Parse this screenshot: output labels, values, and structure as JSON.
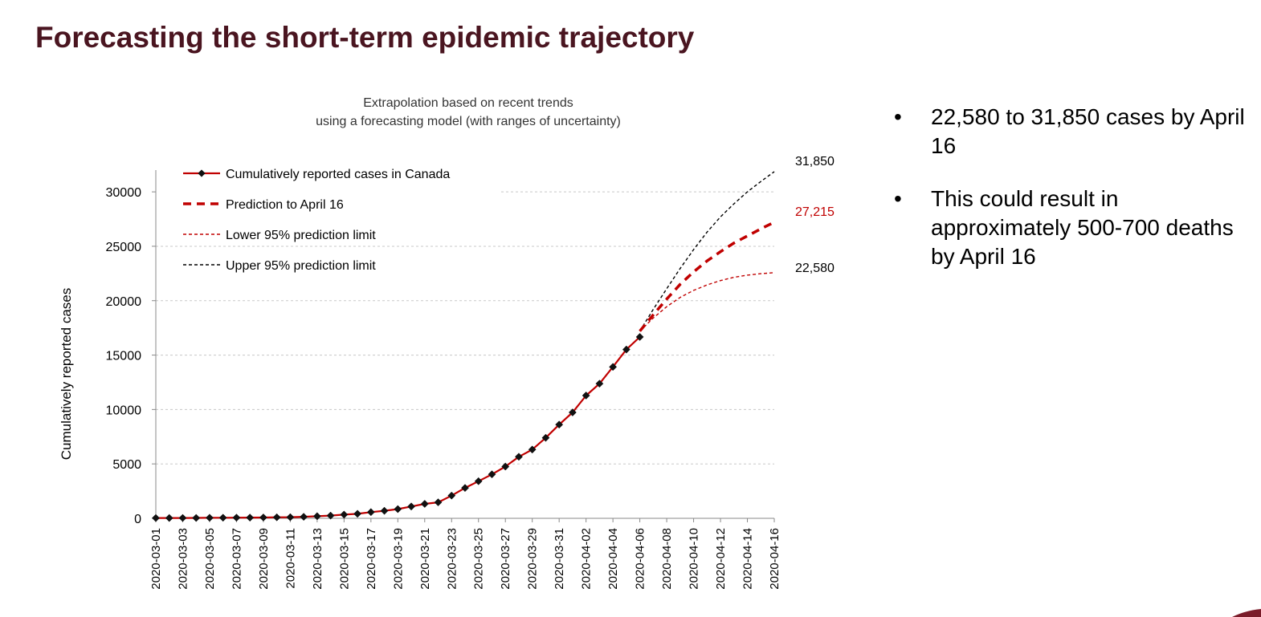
{
  "slide": {
    "title": "Forecasting the short-term epidemic trajectory",
    "bullets": [
      {
        "text": "22,580 to 31,850 cases by April 16"
      },
      {
        "text": "This could result in approximately 500-700 deaths by April 16"
      }
    ],
    "bullet_glyph": "•"
  },
  "colors": {
    "title": "#4a1520",
    "series_red": "#c00000",
    "upper": "#000000",
    "grid": "#c8c8c8",
    "accent_corner": "#7b1c2a"
  },
  "chart_data": {
    "type": "line",
    "subtitle_lines": [
      "Extrapolation based on recent trends",
      "using a forecasting model (with ranges of uncertainty)"
    ],
    "ylabel": "Cumulatively reported cases",
    "ylim": [
      0,
      32000
    ],
    "yticks": [
      0,
      5000,
      10000,
      15000,
      20000,
      25000,
      30000
    ],
    "x_dates": [
      "2020-03-01",
      "2020-03-02",
      "2020-03-03",
      "2020-03-04",
      "2020-03-05",
      "2020-03-06",
      "2020-03-07",
      "2020-03-08",
      "2020-03-09",
      "2020-03-10",
      "2020-03-11",
      "2020-03-12",
      "2020-03-13",
      "2020-03-14",
      "2020-03-15",
      "2020-03-16",
      "2020-03-17",
      "2020-03-18",
      "2020-03-19",
      "2020-03-20",
      "2020-03-21",
      "2020-03-22",
      "2020-03-23",
      "2020-03-24",
      "2020-03-25",
      "2020-03-26",
      "2020-03-27",
      "2020-03-28",
      "2020-03-29",
      "2020-03-30",
      "2020-03-31",
      "2020-04-01",
      "2020-04-02",
      "2020-04-03",
      "2020-04-04",
      "2020-04-05",
      "2020-04-06",
      "2020-04-07",
      "2020-04-08",
      "2020-04-09",
      "2020-04-10",
      "2020-04-11",
      "2020-04-12",
      "2020-04-13",
      "2020-04-14",
      "2020-04-15",
      "2020-04-16"
    ],
    "xtick_labels": [
      "2020-03-01",
      "2020-03-03",
      "2020-03-05",
      "2020-03-07",
      "2020-03-09",
      "2020-03-11",
      "2020-03-13",
      "2020-03-15",
      "2020-03-17",
      "2020-03-19",
      "2020-03-21",
      "2020-03-23",
      "2020-03-25",
      "2020-03-27",
      "2020-03-29",
      "2020-03-31",
      "2020-04-02",
      "2020-04-04",
      "2020-04-06",
      "2020-04-08",
      "2020-04-10",
      "2020-04-12",
      "2020-04-14",
      "2020-04-16"
    ],
    "series": [
      {
        "name": "Cumulatively reported cases in Canada",
        "style": "solid-diamond",
        "start_index": 0,
        "values": [
          27,
          30,
          33,
          34,
          49,
          54,
          60,
          64,
          77,
          93,
          103,
          138,
          193,
          249,
          341,
          415,
          569,
          690,
          846,
          1087,
          1328,
          1470,
          2088,
          2792,
          3409,
          4043,
          4757,
          5655,
          6320,
          7398,
          8612,
          9731,
          11284,
          12375,
          13912,
          15512,
          16667
        ]
      },
      {
        "name": "Prediction to April 16",
        "style": "dashed-thick",
        "start_index": 36,
        "values": [
          17200,
          18700,
          20150,
          21500,
          22650,
          23650,
          24500,
          25300,
          25950,
          26600,
          27215
        ]
      },
      {
        "name": "Lower 95% prediction limit",
        "style": "dashed-thin-red",
        "start_index": 36,
        "values": [
          17200,
          18400,
          19450,
          20300,
          20950,
          21450,
          21850,
          22150,
          22350,
          22480,
          22580
        ]
      },
      {
        "name": "Upper 95% prediction limit",
        "style": "dashed-thin-black",
        "start_index": 36,
        "values": [
          17200,
          19200,
          21100,
          22950,
          24700,
          26300,
          27700,
          28900,
          30000,
          30950,
          31850
        ]
      }
    ],
    "end_labels": [
      {
        "text": "31,850",
        "value": 31850,
        "color": "#000000"
      },
      {
        "text": "27,215",
        "value": 27215,
        "color": "#c00000"
      },
      {
        "text": "22,580",
        "value": 22580,
        "color": "#000000"
      }
    ],
    "legend_position": "top-left"
  }
}
